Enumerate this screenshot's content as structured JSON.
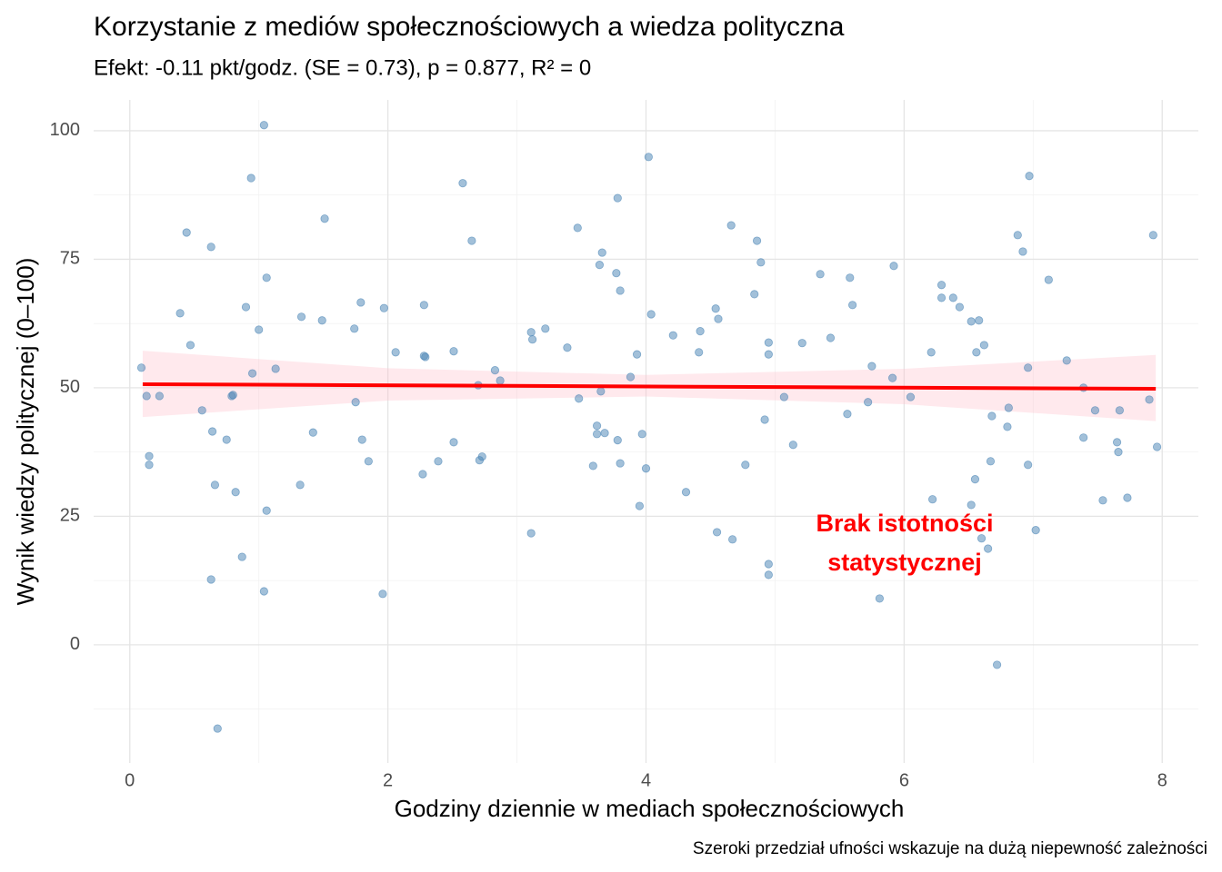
{
  "chart_data": {
    "type": "scatter",
    "title": "Korzystanie z mediów społecznościowych a wiedza polityczna",
    "subtitle": "Efekt: -0.11 pkt/godz. (SE = 0.73), p = 0.877, R² = 0",
    "x_label": "Godziny dziennie w mediach społecznościowych",
    "y_label": "Wynik wiedzy politycznej (0–100)",
    "caption": "Szeroki przedział ufności wskazuje na dużą niepewność zależności",
    "annotation": [
      "Brak istotności",
      "statystycznej"
    ],
    "annotation_color": "#ff0000",
    "xlim": [
      -0.28,
      8.28
    ],
    "ylim": [
      -23,
      106
    ],
    "xticks": [
      0,
      2,
      4,
      6,
      8
    ],
    "yticks": [
      0,
      25,
      50,
      75,
      100
    ],
    "grid": true,
    "minor_grid": true,
    "series": [
      {
        "type": "ribbon",
        "color": "#ffc0cb",
        "x": [
          0.1,
          2,
          4,
          6,
          7.95
        ],
        "lower": [
          44.3,
          47.5,
          48.3,
          46.8,
          43.5
        ],
        "upper": [
          57.2,
          53.8,
          52.5,
          53.7,
          56.4
        ]
      },
      {
        "type": "scatter",
        "color": "#4682b4",
        "x": [
          0.09,
          0.13,
          0.15,
          0.15,
          0.23,
          0.39,
          0.44,
          0.47,
          0.56,
          0.63,
          0.64,
          0.63,
          0.66,
          0.68,
          0.75,
          0.79,
          0.8,
          0.82,
          0.87,
          0.9,
          0.94,
          0.95,
          1.0,
          1.04,
          1.04,
          1.06,
          1.06,
          1.13,
          1.32,
          1.33,
          1.42,
          1.49,
          1.51,
          1.74,
          1.75,
          1.79,
          1.8,
          1.85,
          1.96,
          1.97,
          2.06,
          2.27,
          2.28,
          2.28,
          2.29,
          2.39,
          2.51,
          2.51,
          2.58,
          2.65,
          2.7,
          2.71,
          2.73,
          2.83,
          2.87,
          3.11,
          3.12,
          3.11,
          3.22,
          3.39,
          3.47,
          3.48,
          3.59,
          3.62,
          3.62,
          3.64,
          3.65,
          3.66,
          3.68,
          3.77,
          3.78,
          3.78,
          3.8,
          3.8,
          3.88,
          3.93,
          3.95,
          3.97,
          4.0,
          4.02,
          4.04,
          4.21,
          4.31,
          4.41,
          4.42,
          4.54,
          4.55,
          4.56,
          4.66,
          4.67,
          4.77,
          4.84,
          4.86,
          4.89,
          4.92,
          4.95,
          4.95,
          4.95,
          4.95,
          5.07,
          5.14,
          5.21,
          5.35,
          5.43,
          5.56,
          5.58,
          5.6,
          5.72,
          5.75,
          5.81,
          5.91,
          5.92,
          6.05,
          6.21,
          6.22,
          6.29,
          6.29,
          6.38,
          6.43,
          6.52,
          6.52,
          6.55,
          6.56,
          6.58,
          6.6,
          6.62,
          6.65,
          6.67,
          6.68,
          6.72,
          6.8,
          6.81,
          6.88,
          6.92,
          6.96,
          6.96,
          6.97,
          7.02,
          7.12,
          7.26,
          7.39,
          7.39,
          7.48,
          7.54,
          7.65,
          7.66,
          7.67,
          7.73,
          7.9,
          7.93,
          7.96
        ],
        "values": [
          53.9,
          48.4,
          36.7,
          35.0,
          48.4,
          64.5,
          80.2,
          58.3,
          45.6,
          77.4,
          41.5,
          12.7,
          31.1,
          -16.3,
          39.9,
          48.4,
          48.6,
          29.7,
          17.1,
          65.7,
          90.8,
          52.8,
          61.3,
          101.1,
          10.4,
          26.1,
          71.4,
          53.7,
          31.1,
          63.8,
          41.3,
          63.1,
          82.9,
          61.5,
          47.2,
          66.6,
          39.9,
          35.7,
          9.9,
          65.5,
          56.9,
          33.2,
          66.1,
          56.2,
          56.0,
          35.7,
          57.1,
          39.4,
          89.8,
          78.6,
          50.5,
          35.9,
          36.6,
          53.4,
          51.4,
          60.8,
          59.4,
          21.7,
          61.5,
          57.8,
          81.1,
          47.9,
          34.8,
          41.0,
          42.6,
          73.9,
          49.3,
          76.3,
          41.2,
          72.3,
          39.8,
          86.9,
          35.3,
          68.9,
          52.1,
          56.5,
          27.0,
          41.0,
          34.3,
          94.9,
          64.3,
          60.2,
          29.7,
          56.9,
          61.0,
          65.4,
          21.9,
          63.4,
          81.6,
          20.5,
          35.0,
          68.2,
          78.6,
          74.4,
          43.8,
          56.5,
          58.8,
          15.7,
          13.6,
          48.2,
          38.9,
          58.7,
          72.1,
          59.7,
          44.9,
          71.4,
          66.1,
          47.2,
          54.2,
          9.0,
          51.9,
          73.7,
          48.2,
          56.9,
          28.3,
          70.0,
          67.5,
          67.5,
          65.7,
          62.9,
          27.2,
          32.2,
          56.9,
          63.1,
          20.7,
          58.3,
          18.7,
          35.7,
          44.5,
          -3.9,
          42.4,
          46.1,
          79.7,
          76.5,
          35.0,
          53.9,
          91.2,
          22.3,
          71.0,
          55.3,
          40.3,
          50.0,
          45.6,
          28.1,
          39.4,
          37.5,
          45.6,
          28.6,
          47.7,
          79.7,
          38.5
        ]
      },
      {
        "type": "line",
        "color": "#ff0000",
        "x": [
          0.1,
          7.95
        ],
        "values": [
          50.7,
          49.8
        ]
      }
    ]
  }
}
